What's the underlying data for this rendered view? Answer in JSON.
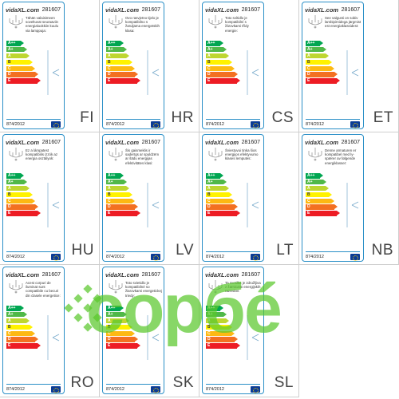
{
  "brand": {
    "logo": "vidaXL.com"
  },
  "model": "281607",
  "regulation": "874/2012",
  "energy_classes": [
    "A++",
    "A+",
    "A",
    "B",
    "C",
    "D",
    "E"
  ],
  "class_colors": [
    "#00a651",
    "#50b848",
    "#bed630",
    "#fff200",
    "#fdb913",
    "#f37021",
    "#ed1c24"
  ],
  "labels": [
    {
      "code": "FI",
      "text": "Tähän valaisimeen soveltuvat seuraaviin energialuokkiin kuulu via lamppuja:"
    },
    {
      "code": "HR",
      "text": "Ovo rasvjetno tijelo je kompatibilno s žaruljama energetskih klasa:"
    },
    {
      "code": "CS",
      "text": "Toto svítidlo je kompatibilní s žárovkami třídy energie:"
    },
    {
      "code": "ET",
      "text": "See valgusti on sobiv lambipirnidega järgmist est energiaklassidest:"
    },
    {
      "code": "HU",
      "text": "Ez a lámpatest kompatibilis izzók az energia osztályok:"
    },
    {
      "code": "LV",
      "text": "Šis gaismeklis ir saderīgs ar spuldzēm ar šādu energijas efektivitātes klasi:"
    },
    {
      "code": "LT",
      "text": "Šviestuvui tinka šios energijos efektyvumo klasės lemputės:"
    },
    {
      "code": "NB",
      "text": "Denne armaturen er kompatibel med ly- spærer av følgende energiklasser:"
    },
    {
      "code": "RO",
      "text": "Acest corpuri de iluminat sunt compatibile cu becuri din clasele energetice:"
    },
    {
      "code": "SK",
      "text": "Toto svietidlo je kompatibilné so žiarovkami energetickej triedy:"
    },
    {
      "code": "SL",
      "text": "Ta svetilka je združljiva z žarnicami energijskih razredov:"
    }
  ],
  "watermark": {
    "text": "copбé"
  }
}
